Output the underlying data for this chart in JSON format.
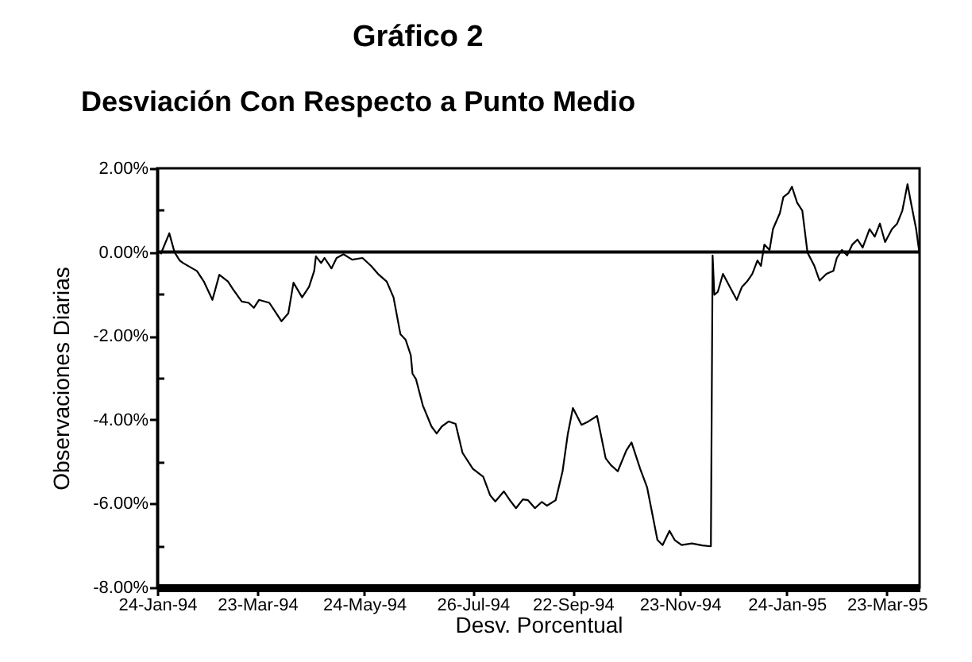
{
  "chart_data": {
    "type": "line",
    "title": "Gráfico 2",
    "subtitle": "Desviación Con Respecto a Punto Medio",
    "xlabel": "Desv. Porcentual",
    "ylabel": "Observaciones Diarias",
    "x": [
      "1994-01-26",
      "1994-01-31",
      "1994-02-03",
      "1994-02-06",
      "1994-02-08",
      "1994-02-16",
      "1994-02-20",
      "1994-02-25",
      "1994-03-01",
      "1994-03-06",
      "1994-03-09",
      "1994-03-14",
      "1994-03-18",
      "1994-03-21",
      "1994-03-24",
      "1994-03-30",
      "1994-04-03",
      "1994-04-06",
      "1994-04-10",
      "1994-04-13",
      "1994-04-18",
      "1994-04-22",
      "1994-04-25",
      "1994-04-26",
      "1994-04-29",
      "1994-05-01",
      "1994-05-05",
      "1994-05-08",
      "1994-05-12",
      "1994-05-17",
      "1994-05-23",
      "1994-05-28",
      "1994-06-01",
      "1994-06-06",
      "1994-06-10",
      "1994-06-14",
      "1994-06-17",
      "1994-06-20",
      "1994-06-21",
      "1994-06-23",
      "1994-06-27",
      "1994-07-02",
      "1994-07-05",
      "1994-07-08",
      "1994-07-12",
      "1994-07-16",
      "1994-07-20",
      "1994-07-26",
      "1994-08-01",
      "1994-08-05",
      "1994-08-08",
      "1994-08-13",
      "1994-08-17",
      "1994-08-20",
      "1994-08-24",
      "1994-08-27",
      "1994-08-31",
      "1994-09-04",
      "1994-09-07",
      "1994-09-12",
      "1994-09-16",
      "1994-09-19",
      "1994-09-22",
      "1994-09-27",
      "1994-10-01",
      "1994-10-06",
      "1994-10-11",
      "1994-10-14",
      "1994-10-18",
      "1994-10-23",
      "1994-10-26",
      "1994-10-31",
      "1994-11-04",
      "1994-11-07",
      "1994-11-10",
      "1994-11-13",
      "1994-11-17",
      "1994-11-20",
      "1994-11-24",
      "1994-11-30",
      "1994-12-06",
      "1994-12-11",
      "1994-12-12",
      "1994-12-13",
      "1994-12-15",
      "1994-12-18",
      "1994-12-22",
      "1994-12-26",
      "1994-12-29",
      "1995-01-01",
      "1995-01-04",
      "1995-01-07",
      "1995-01-09",
      "1995-01-11",
      "1995-01-14",
      "1995-01-16",
      "1995-01-20",
      "1995-01-22",
      "1995-01-25",
      "1995-01-27",
      "1995-01-30",
      "1995-02-02",
      "1995-02-05",
      "1995-02-09",
      "1995-02-12",
      "1995-02-16",
      "1995-02-20",
      "1995-02-22",
      "1995-02-25",
      "1995-02-28",
      "1995-03-03",
      "1995-03-06",
      "1995-03-09",
      "1995-03-13",
      "1995-03-16",
      "1995-03-19",
      "1995-03-22",
      "1995-03-26",
      "1995-03-29",
      "1995-04-01",
      "1995-04-04",
      "1995-04-06",
      "1995-04-09",
      "1995-04-11"
    ],
    "series": [
      {
        "color": "#000000",
        "values": [
          -0.05,
          0.45,
          0.0,
          -0.2,
          -0.26,
          -0.45,
          -0.7,
          -1.14,
          -0.54,
          -0.7,
          -0.89,
          -1.18,
          -1.21,
          -1.33,
          -1.14,
          -1.21,
          -1.46,
          -1.65,
          -1.46,
          -0.73,
          -1.08,
          -0.83,
          -0.45,
          -0.1,
          -0.26,
          -0.14,
          -0.39,
          -0.14,
          -0.05,
          -0.18,
          -0.14,
          -0.33,
          -0.52,
          -0.7,
          -1.08,
          -1.96,
          -2.09,
          -2.46,
          -2.9,
          -3.03,
          -3.66,
          -4.16,
          -4.33,
          -4.16,
          -4.04,
          -4.1,
          -4.79,
          -5.17,
          -5.36,
          -5.8,
          -5.95,
          -5.71,
          -5.95,
          -6.11,
          -5.9,
          -5.92,
          -6.11,
          -5.96,
          -6.05,
          -5.92,
          -5.23,
          -4.35,
          -3.72,
          -4.12,
          -4.04,
          -3.91,
          -4.92,
          -5.08,
          -5.23,
          -4.73,
          -4.54,
          -5.17,
          -5.61,
          -6.24,
          -6.87,
          -6.99,
          -6.65,
          -6.87,
          -6.99,
          -6.95,
          -7.0,
          -7.02,
          -0.08,
          -1.02,
          -0.95,
          -0.52,
          -0.83,
          -1.14,
          -0.83,
          -0.7,
          -0.52,
          -0.2,
          -0.33,
          0.18,
          0.05,
          0.55,
          0.93,
          1.31,
          1.41,
          1.56,
          1.18,
          0.99,
          -0.01,
          -0.33,
          -0.68,
          -0.52,
          -0.45,
          -0.14,
          0.05,
          -0.08,
          0.18,
          0.3,
          0.11,
          0.55,
          0.37,
          0.68,
          0.24,
          0.55,
          0.68,
          0.99,
          1.62,
          1.18,
          0.55,
          -0.05
        ]
      }
    ],
    "xlim": [
      "1994-01-24",
      "1995-04-11"
    ],
    "xticks": [
      {
        "value": "1994-01-24",
        "label": "24-Jan-94"
      },
      {
        "value": "1994-03-23",
        "label": "23-Mar-94"
      },
      {
        "value": "1994-05-24",
        "label": "24-May-94"
      },
      {
        "value": "1994-07-26",
        "label": "26-Jul-94"
      },
      {
        "value": "1994-09-22",
        "label": "22-Sep-94"
      },
      {
        "value": "1994-11-23",
        "label": "23-Nov-94"
      },
      {
        "value": "1995-01-24",
        "label": "24-Jan-95"
      },
      {
        "value": "1995-03-23",
        "label": "23-Mar-95"
      }
    ],
    "ylim": [
      -8,
      2
    ],
    "yticks": [
      {
        "value": 2,
        "label": "2.00%"
      },
      {
        "value": 1,
        "label": null
      },
      {
        "value": 0,
        "label": "0.00%"
      },
      {
        "value": -1,
        "label": null
      },
      {
        "value": -2,
        "label": "-2.00%"
      },
      {
        "value": -3,
        "label": null
      },
      {
        "value": -4,
        "label": "-4.00%"
      },
      {
        "value": -5,
        "label": null
      },
      {
        "value": -6,
        "label": "-6.00%"
      },
      {
        "value": -7,
        "label": null
      },
      {
        "value": -8,
        "label": "-8.00%"
      }
    ],
    "ref_lines": [
      {
        "axis": "y",
        "value": 0,
        "color": "#000000"
      }
    ],
    "grid": false,
    "line_style": "solid"
  }
}
